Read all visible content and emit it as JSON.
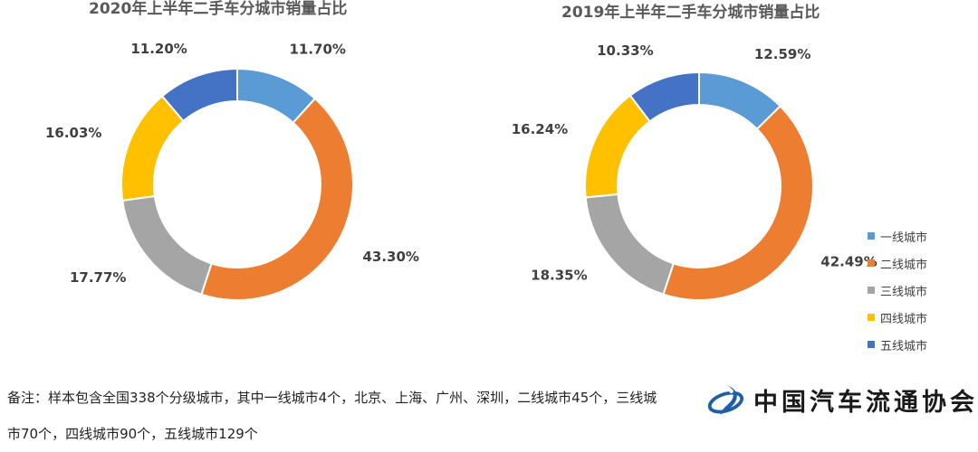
{
  "chart_data": [
    {
      "type": "pie",
      "title": "2020年上半年二手车分城市销量占比",
      "categories": [
        "一线城市",
        "二线城市",
        "三线城市",
        "四线城市",
        "五线城市"
      ],
      "values": [
        11.7,
        43.3,
        17.77,
        16.03,
        11.2
      ],
      "labels": [
        "11.70%",
        "43.30%",
        "17.77%",
        "16.03%",
        "11.20%"
      ]
    },
    {
      "type": "pie",
      "title": "2019年上半年二手车分城市销量占比",
      "categories": [
        "一线城市",
        "二线城市",
        "三线城市",
        "四线城市",
        "五线城市"
      ],
      "values": [
        12.59,
        42.49,
        18.35,
        16.24,
        10.33
      ],
      "labels": [
        "12.59%",
        "42.49%",
        "18.35%",
        "16.24%",
        "10.33%"
      ]
    }
  ],
  "colors": [
    "#5B9BD5",
    "#ED7D31",
    "#A5A5A5",
    "#FFC000",
    "#4472C4"
  ],
  "legend": {
    "items": [
      "一线城市",
      "二线城市",
      "三线城市",
      "四线城市",
      "五线城市"
    ],
    "placement": "right"
  },
  "footnote": "备注：样本包含全国338个分级城市，其中一线城市4个，北京、上海、广州、深圳，二线城市45个，三线城市70个，四线城市90个，五线城市129个",
  "logo": {
    "text": "中国汽车流通协会",
    "icon": "association-logo-icon"
  }
}
